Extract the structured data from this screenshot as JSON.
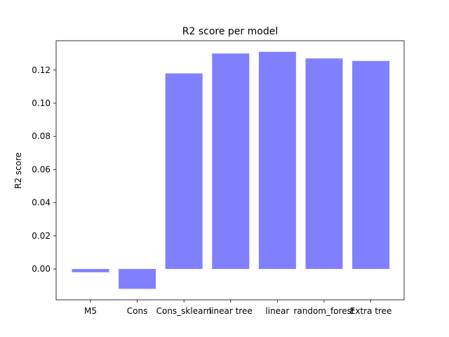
{
  "chart_data": {
    "type": "bar",
    "title": "R2 score per model",
    "xlabel": "",
    "ylabel": "R2 score",
    "categories": [
      "M5",
      "Cons",
      "Cons_sklearn",
      "linear tree",
      "linear",
      "random_forest",
      "Extra tree"
    ],
    "values": [
      -0.002,
      -0.012,
      0.118,
      0.13,
      0.131,
      0.127,
      0.1255
    ],
    "ylim": [
      -0.0186,
      0.1377
    ],
    "yticks": [
      0.0,
      0.02,
      0.04,
      0.06,
      0.08,
      0.1,
      0.12
    ],
    "ytick_labels": [
      "0.00",
      "0.02",
      "0.04",
      "0.06",
      "0.08",
      "0.10",
      "0.12"
    ],
    "grid": false,
    "bar_color": "#8080ff"
  }
}
